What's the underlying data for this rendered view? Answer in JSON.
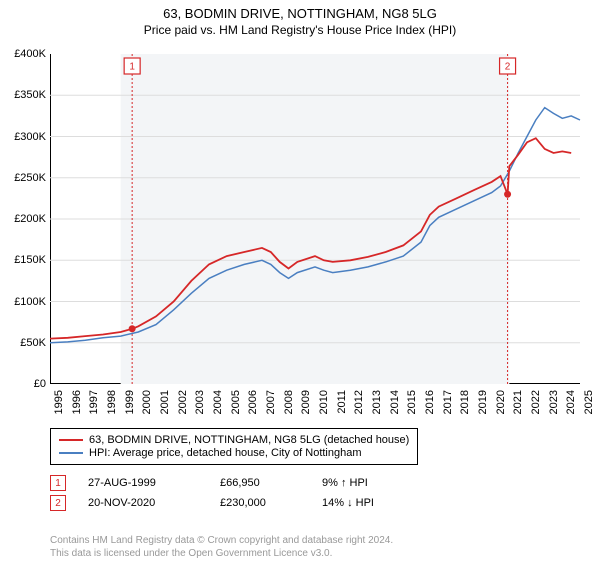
{
  "title": "63, BODMIN DRIVE, NOTTINGHAM, NG8 5LG",
  "subtitle": "Price paid vs. HM Land Registry's House Price Index (HPI)",
  "chart": {
    "type": "line",
    "background_color": "#ffffff",
    "grid_color": "#dddddd",
    "shade_color": "#f3f5f7",
    "shade_years": [
      1999,
      2021
    ],
    "axis_color": "#000000",
    "ylim": [
      0,
      400000
    ],
    "ytick_step": 50000,
    "yticks": [
      "£0",
      "£50K",
      "£100K",
      "£150K",
      "£200K",
      "£250K",
      "£300K",
      "£350K",
      "£400K"
    ],
    "xlim_years": [
      1995,
      2025
    ],
    "xticks": [
      "1995",
      "1996",
      "1997",
      "1998",
      "1999",
      "2000",
      "2001",
      "2002",
      "2003",
      "2004",
      "2005",
      "2006",
      "2007",
      "2008",
      "2009",
      "2010",
      "2011",
      "2012",
      "2013",
      "2014",
      "2015",
      "2016",
      "2017",
      "2018",
      "2019",
      "2020",
      "2021",
      "2022",
      "2023",
      "2024",
      "2025"
    ],
    "series": [
      {
        "name": "property",
        "label": "63, BODMIN DRIVE, NOTTINGHAM, NG8 5LG (detached house)",
        "color": "#d62728",
        "width": 1.8,
        "data": [
          [
            1995,
            55000
          ],
          [
            1996,
            56000
          ],
          [
            1997,
            58000
          ],
          [
            1998,
            60000
          ],
          [
            1999,
            63000
          ],
          [
            1999.65,
            66950
          ],
          [
            2000,
            70000
          ],
          [
            2001,
            82000
          ],
          [
            2002,
            100000
          ],
          [
            2003,
            125000
          ],
          [
            2004,
            145000
          ],
          [
            2005,
            155000
          ],
          [
            2006,
            160000
          ],
          [
            2007,
            165000
          ],
          [
            2007.5,
            160000
          ],
          [
            2008,
            148000
          ],
          [
            2008.5,
            140000
          ],
          [
            2009,
            148000
          ],
          [
            2010,
            155000
          ],
          [
            2010.5,
            150000
          ],
          [
            2011,
            148000
          ],
          [
            2012,
            150000
          ],
          [
            2013,
            154000
          ],
          [
            2014,
            160000
          ],
          [
            2015,
            168000
          ],
          [
            2016,
            185000
          ],
          [
            2016.5,
            205000
          ],
          [
            2017,
            215000
          ],
          [
            2018,
            225000
          ],
          [
            2019,
            235000
          ],
          [
            2020,
            245000
          ],
          [
            2020.5,
            252000
          ],
          [
            2020.9,
            230000
          ],
          [
            2021,
            264000
          ],
          [
            2021.5,
            278000
          ],
          [
            2022,
            293000
          ],
          [
            2022.5,
            298000
          ],
          [
            2023,
            285000
          ],
          [
            2023.5,
            280000
          ],
          [
            2024,
            282000
          ],
          [
            2024.5,
            280000
          ]
        ]
      },
      {
        "name": "hpi",
        "label": "HPI: Average price, detached house, City of Nottingham",
        "color": "#4a7fc1",
        "width": 1.5,
        "data": [
          [
            1995,
            50000
          ],
          [
            1996,
            51000
          ],
          [
            1997,
            53000
          ],
          [
            1998,
            56000
          ],
          [
            1999,
            58000
          ],
          [
            2000,
            63000
          ],
          [
            2001,
            72000
          ],
          [
            2002,
            90000
          ],
          [
            2003,
            110000
          ],
          [
            2004,
            128000
          ],
          [
            2005,
            138000
          ],
          [
            2006,
            145000
          ],
          [
            2007,
            150000
          ],
          [
            2007.5,
            145000
          ],
          [
            2008,
            135000
          ],
          [
            2008.5,
            128000
          ],
          [
            2009,
            135000
          ],
          [
            2010,
            142000
          ],
          [
            2010.5,
            138000
          ],
          [
            2011,
            135000
          ],
          [
            2012,
            138000
          ],
          [
            2013,
            142000
          ],
          [
            2014,
            148000
          ],
          [
            2015,
            155000
          ],
          [
            2016,
            172000
          ],
          [
            2016.5,
            192000
          ],
          [
            2017,
            202000
          ],
          [
            2018,
            212000
          ],
          [
            2019,
            222000
          ],
          [
            2020,
            232000
          ],
          [
            2020.5,
            240000
          ],
          [
            2021,
            258000
          ],
          [
            2021.5,
            280000
          ],
          [
            2022,
            300000
          ],
          [
            2022.5,
            320000
          ],
          [
            2023,
            335000
          ],
          [
            2023.5,
            328000
          ],
          [
            2024,
            322000
          ],
          [
            2024.5,
            325000
          ],
          [
            2025,
            320000
          ]
        ]
      }
    ],
    "markers": [
      {
        "id": "1",
        "year": 1999.65,
        "value": 66950
      },
      {
        "id": "2",
        "year": 2020.9,
        "value": 230000
      }
    ],
    "label_fontsize": 11,
    "title_fontsize": 13
  },
  "legend": {
    "s1": "63, BODMIN DRIVE, NOTTINGHAM, NG8 5LG (detached house)",
    "s2": "HPI: Average price, detached house, City of Nottingham"
  },
  "transactions": [
    {
      "id": "1",
      "date": "27-AUG-1999",
      "price": "£66,950",
      "delta": "9% ↑ HPI"
    },
    {
      "id": "2",
      "date": "20-NOV-2020",
      "price": "£230,000",
      "delta": "14% ↓ HPI"
    }
  ],
  "footer": {
    "line1": "Contains HM Land Registry data © Crown copyright and database right 2024.",
    "line2": "This data is licensed under the Open Government Licence v3.0."
  }
}
